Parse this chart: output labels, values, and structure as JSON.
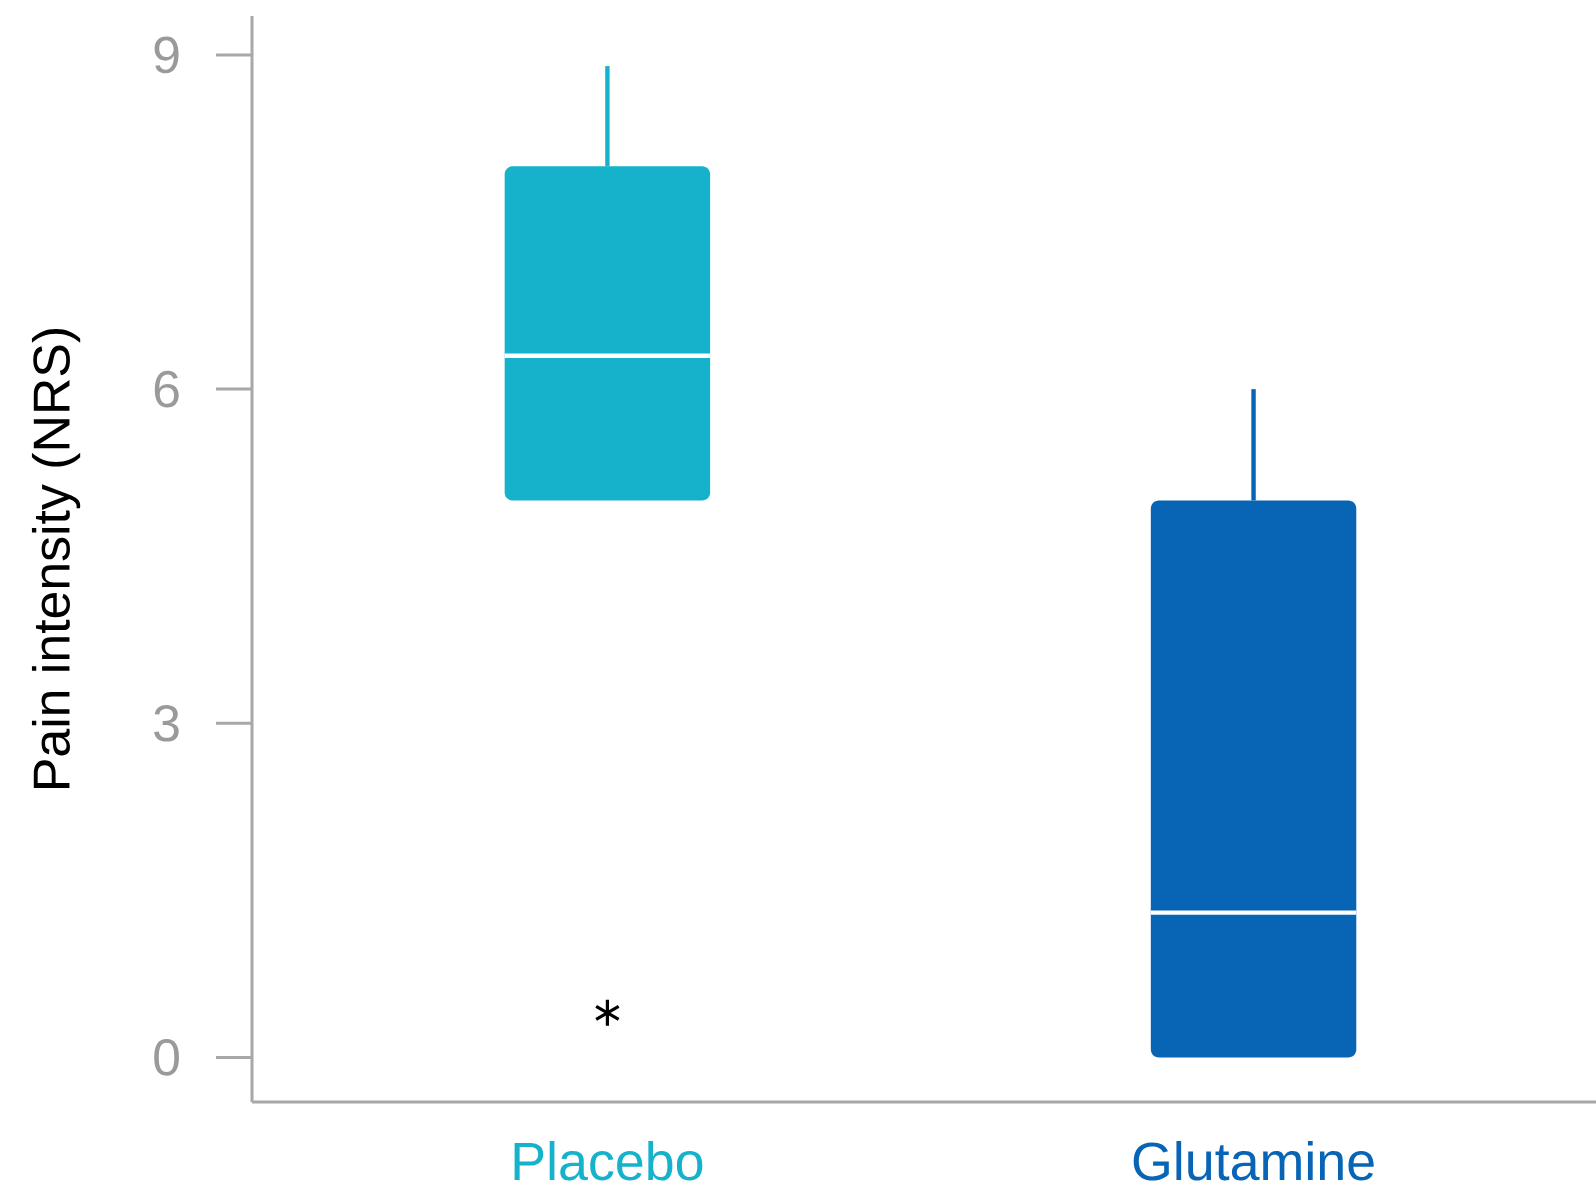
{
  "chart_data": {
    "type": "box",
    "ylabel": "Pain intensity (NRS)",
    "categories": [
      "Placebo",
      "Glutamine"
    ],
    "colors": [
      "#16b2cc",
      "#0865b6"
    ],
    "boxes": [
      {
        "low": 5,
        "q1": 5,
        "median": 6.3,
        "q3": 8,
        "high": 8.9,
        "outliers": [
          0.4
        ]
      },
      {
        "low": 0,
        "q1": 0,
        "median": 1.3,
        "q3": 5,
        "high": 6
      }
    ],
    "ylim": [
      -0.4,
      9.35
    ],
    "yticks": [
      0,
      3,
      6,
      9
    ],
    "marker": "star"
  }
}
